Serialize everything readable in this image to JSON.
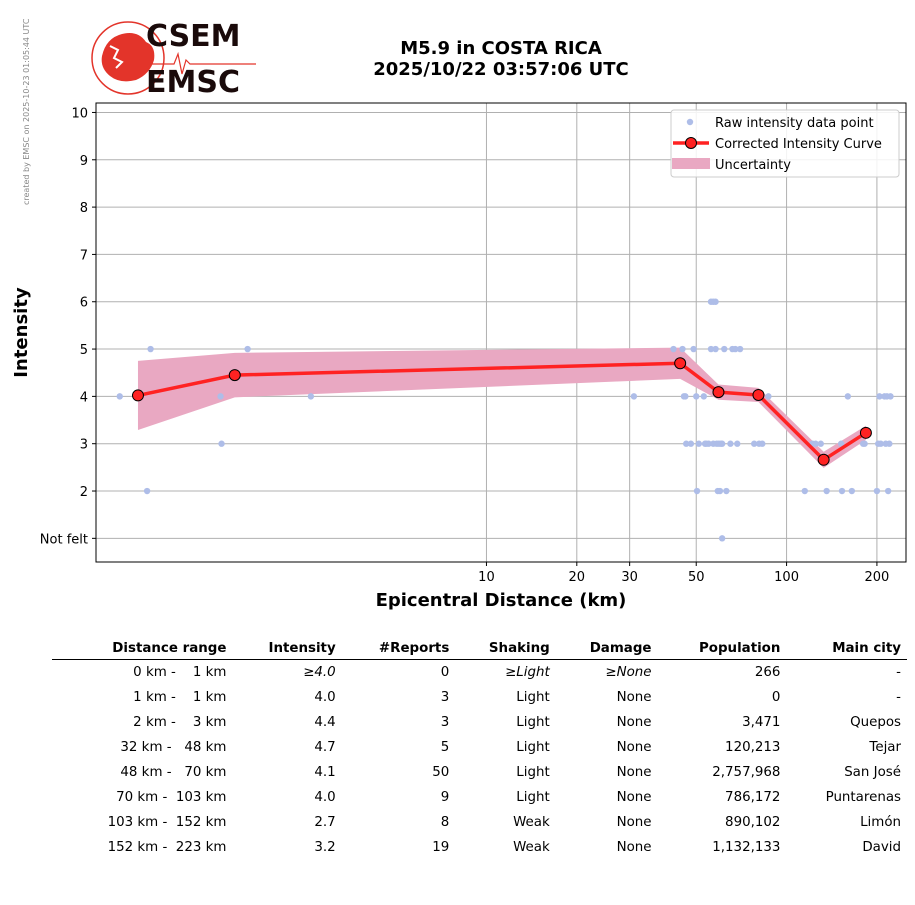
{
  "watermark": "created by EMSC on 2025-10-23 01:05:44 UTC",
  "logo": {
    "line1": "CSEM",
    "line2": "EMSC"
  },
  "title": {
    "line1": "M5.9 in COSTA RICA",
    "line2": "2025/10/22 03:57:06 UTC"
  },
  "colors": {
    "curve": "#ff2222",
    "marker_edge": "#000000",
    "uncertainty": "#e9a8c2",
    "raw": "#aebde8",
    "grid": "#b0b0b0",
    "logo_red": "#e3342a",
    "logo_text": "#1a0a0a"
  },
  "chart_data": {
    "type": "line",
    "xlabel": "Epicentral Distance (km)",
    "ylabel": "Intensity",
    "x_scale": "log",
    "xlim": [
      0.5,
      250
    ],
    "ylim": [
      0.5,
      10.2
    ],
    "xticks": [
      10,
      20,
      30,
      50,
      100,
      200
    ],
    "xtick_labels": [
      "10",
      "20",
      "30",
      "50",
      "100",
      "200"
    ],
    "yticks": [
      1,
      2,
      3,
      4,
      5,
      6,
      7,
      8,
      9,
      10
    ],
    "ytick_labels": [
      "Not felt",
      "2",
      "3",
      "4",
      "5",
      "6",
      "7",
      "8",
      "9",
      "10"
    ],
    "grid": true,
    "legend_position": "top-right",
    "legend": [
      "Raw intensity data point",
      "Corrected Intensity Curve",
      "Uncertainty"
    ],
    "curve": {
      "x": [
        0.69,
        1.45,
        44.2,
        59.3,
        80.6,
        132.9,
        183.8
      ],
      "y": [
        4.02,
        4.45,
        4.7,
        4.09,
        4.03,
        2.66,
        3.23
      ],
      "upper": [
        4.75,
        4.92,
        5.03,
        4.25,
        4.18,
        2.83,
        3.38
      ],
      "lower": [
        3.29,
        3.98,
        4.37,
        3.93,
        3.88,
        2.49,
        3.08
      ]
    },
    "raw_points": [
      [
        0.6,
        4
      ],
      [
        0.74,
        2
      ],
      [
        0.76,
        5
      ],
      [
        1.3,
        4
      ],
      [
        1.31,
        3
      ],
      [
        1.6,
        5
      ],
      [
        2.6,
        4
      ],
      [
        31,
        4
      ],
      [
        42,
        5
      ],
      [
        45,
        5
      ],
      [
        45.5,
        4
      ],
      [
        46,
        4
      ],
      [
        46.3,
        3
      ],
      [
        48,
        3
      ],
      [
        49,
        5
      ],
      [
        50,
        4
      ],
      [
        50.3,
        2
      ],
      [
        51,
        3
      ],
      [
        53,
        4
      ],
      [
        53.5,
        3
      ],
      [
        54,
        3
      ],
      [
        55,
        3
      ],
      [
        56,
        5
      ],
      [
        56,
        6
      ],
      [
        57,
        6
      ],
      [
        57,
        3
      ],
      [
        58,
        6
      ],
      [
        58,
        5
      ],
      [
        58.5,
        3
      ],
      [
        59,
        2
      ],
      [
        59.5,
        3
      ],
      [
        60,
        2
      ],
      [
        60.5,
        3
      ],
      [
        61,
        1
      ],
      [
        61,
        3
      ],
      [
        62,
        5
      ],
      [
        63,
        2
      ],
      [
        65,
        3
      ],
      [
        66,
        5
      ],
      [
        67.5,
        5
      ],
      [
        68.5,
        3
      ],
      [
        70,
        5
      ],
      [
        78,
        3
      ],
      [
        79,
        4
      ],
      [
        81,
        3
      ],
      [
        83,
        3
      ],
      [
        87,
        4
      ],
      [
        115,
        2
      ],
      [
        122,
        3
      ],
      [
        125,
        3
      ],
      [
        130,
        3
      ],
      [
        136,
        2
      ],
      [
        152,
        3
      ],
      [
        153,
        2
      ],
      [
        160,
        4
      ],
      [
        165,
        2
      ],
      [
        180,
        3
      ],
      [
        182,
        3
      ],
      [
        200,
        2
      ],
      [
        202,
        3
      ],
      [
        204,
        4
      ],
      [
        206,
        3
      ],
      [
        212,
        4
      ],
      [
        214,
        3
      ],
      [
        216,
        4
      ],
      [
        218,
        2
      ],
      [
        220,
        3
      ],
      [
        222,
        4
      ]
    ]
  },
  "table": {
    "headers": [
      "Distance range",
      "Intensity",
      "#Reports",
      "Shaking",
      "Damage",
      "Population",
      "Main city"
    ],
    "rows": [
      {
        "range": "0 km -    1 km",
        "intensity": "≥4.0",
        "reports": "0",
        "shaking": "≥Light",
        "damage": "≥None",
        "population": "266",
        "city": "-"
      },
      {
        "range": "1 km -    1 km",
        "intensity": "4.0",
        "reports": "3",
        "shaking": "Light",
        "damage": "None",
        "population": "0",
        "city": "-"
      },
      {
        "range": "2 km -    3 km",
        "intensity": "4.4",
        "reports": "3",
        "shaking": "Light",
        "damage": "None",
        "population": "3,471",
        "city": "Quepos"
      },
      {
        "range": "32 km -   48 km",
        "intensity": "4.7",
        "reports": "5",
        "shaking": "Light",
        "damage": "None",
        "population": "120,213",
        "city": "Tejar"
      },
      {
        "range": "48 km -   70 km",
        "intensity": "4.1",
        "reports": "50",
        "shaking": "Light",
        "damage": "None",
        "population": "2,757,968",
        "city": "San José"
      },
      {
        "range": "70 km -  103 km",
        "intensity": "4.0",
        "reports": "9",
        "shaking": "Light",
        "damage": "None",
        "population": "786,172",
        "city": "Puntarenas"
      },
      {
        "range": "103 km -  152 km",
        "intensity": "2.7",
        "reports": "8",
        "shaking": "Weak",
        "damage": "None",
        "population": "890,102",
        "city": "Limón"
      },
      {
        "range": "152 km -  223 km",
        "intensity": "3.2",
        "reports": "19",
        "shaking": "Weak",
        "damage": "None",
        "population": "1,132,133",
        "city": "David"
      }
    ]
  }
}
